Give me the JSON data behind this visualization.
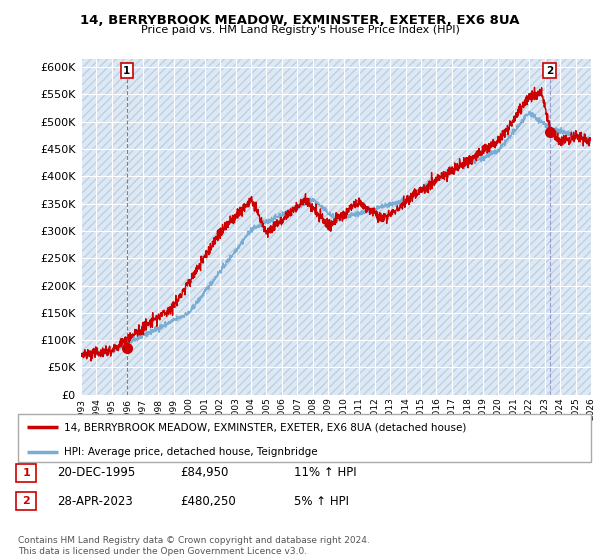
{
  "title_line1": "14, BERRYBROOK MEADOW, EXMINSTER, EXETER, EX6 8UA",
  "title_line2": "Price paid vs. HM Land Registry's House Price Index (HPI)",
  "ytick_values": [
    0,
    50000,
    100000,
    150000,
    200000,
    250000,
    300000,
    350000,
    400000,
    450000,
    500000,
    550000,
    600000
  ],
  "ylim": [
    0,
    615000
  ],
  "xlim_start": 1993,
  "xlim_end": 2026,
  "hpi_color": "#7aadd4",
  "price_color": "#cc0000",
  "bg_color": "#dce9f5",
  "grid_color": "#ffffff",
  "point1_x": 1995.97,
  "point1_y": 84950,
  "point2_x": 2023.32,
  "point2_y": 480250,
  "legend_line1": "14, BERRYBROOK MEADOW, EXMINSTER, EXETER, EX6 8UA (detached house)",
  "legend_line2": "HPI: Average price, detached house, Teignbridge",
  "table_row1_num": "1",
  "table_row1_date": "20-DEC-1995",
  "table_row1_price": "£84,950",
  "table_row1_hpi": "11% ↑ HPI",
  "table_row2_num": "2",
  "table_row2_date": "28-APR-2023",
  "table_row2_price": "£480,250",
  "table_row2_hpi": "5% ↑ HPI",
  "footnote": "Contains HM Land Registry data © Crown copyright and database right 2024.\nThis data is licensed under the Open Government Licence v3.0.",
  "hatch_color": "#c0cfe0",
  "vline1_color": "#cc3333",
  "vline2_color": "#8888cc"
}
